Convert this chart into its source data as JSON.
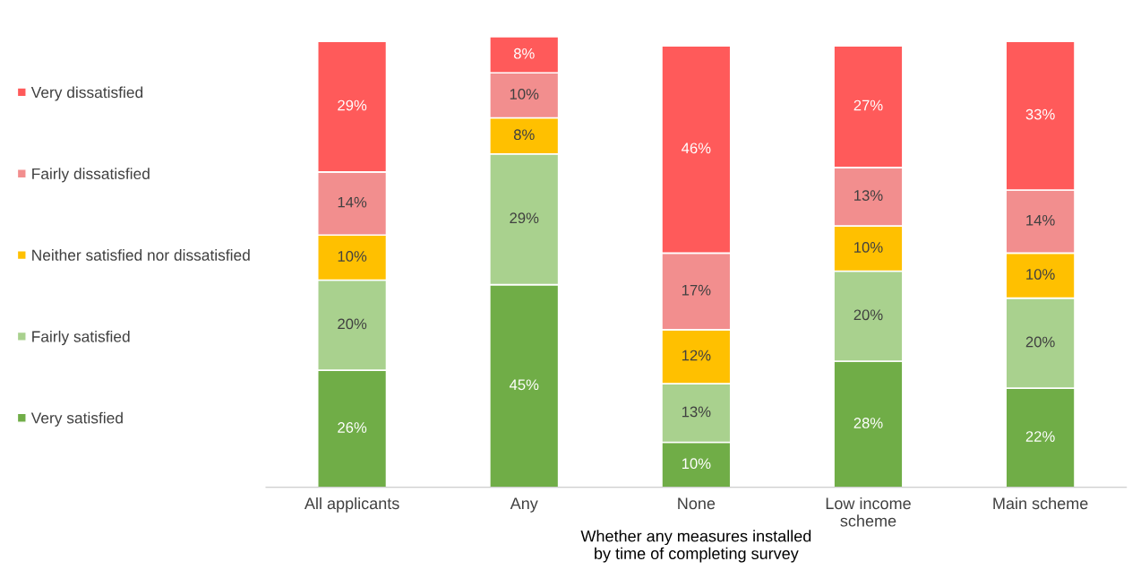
{
  "chart_data": {
    "type": "bar",
    "stacked": true,
    "legend": "left",
    "grid": false,
    "xlabel": "Whether any measures installed\nby time of completing survey",
    "categories": [
      "All applicants",
      "Any",
      "None",
      "Low income\nscheme",
      "Main scheme"
    ],
    "series": [
      {
        "name": "Very satisfied",
        "color": "#70ad47",
        "values": [
          26,
          45,
          10,
          28,
          22
        ],
        "value_labels": [
          "26%",
          "45%",
          "10%",
          "28%",
          "22%"
        ]
      },
      {
        "name": "Fairly satisfied",
        "color": "#a9d18e",
        "values": [
          20,
          29,
          13,
          20,
          20
        ],
        "value_labels": [
          "20%",
          "29%",
          "13%",
          "20%",
          "20%"
        ]
      },
      {
        "name": "Neither satisfied nor dissatisfied",
        "color": "#ffc000",
        "values": [
          10,
          8,
          12,
          10,
          10
        ],
        "value_labels": [
          "10%",
          "8%",
          "12%",
          "10%",
          "10%"
        ]
      },
      {
        "name": "Fairly dissatisfied",
        "color": "#f28e8e",
        "values": [
          14,
          10,
          17,
          13,
          14
        ],
        "value_labels": [
          "14%",
          "10%",
          "17%",
          "13%",
          "14%"
        ]
      },
      {
        "name": "Very dissatisfied",
        "color": "#ff5a5a",
        "values": [
          29,
          8,
          46,
          27,
          33
        ],
        "value_labels": [
          "29%",
          "8%",
          "46%",
          "27%",
          "33%"
        ]
      }
    ]
  }
}
